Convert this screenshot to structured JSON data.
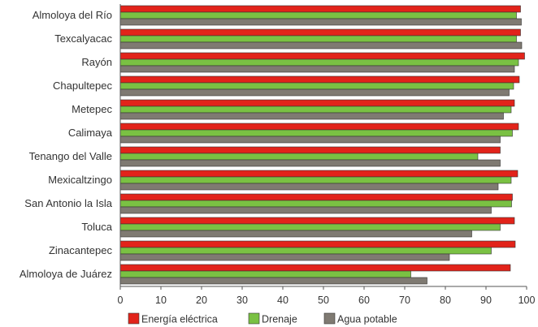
{
  "chart_data": {
    "type": "bar",
    "orientation": "horizontal",
    "categories": [
      "Almoloya del Río",
      "Texcalyacac",
      "Rayón",
      "Chapultepec",
      "Metepec",
      "Calimaya",
      "Tenango del Valle",
      "Mexicaltzingo",
      "San Antonio la Isla",
      "Toluca",
      "Zinacantepec",
      "Almoloya de Juárez"
    ],
    "series": [
      {
        "name": "Energía eléctrica",
        "color": "#e2231a",
        "values": [
          98.5,
          98.5,
          99.5,
          98.2,
          97,
          98,
          93.5,
          97.8,
          96.5,
          97,
          97.2,
          96
        ]
      },
      {
        "name": "Drenaje",
        "color": "#7ac143",
        "values": [
          97.5,
          97.5,
          98,
          96.8,
          96.2,
          96.5,
          88,
          96.2,
          96.3,
          93.5,
          91.3,
          71.5
        ]
      },
      {
        "name": "Agua potable",
        "color": "#7f7a72",
        "values": [
          98.7,
          98.8,
          97,
          95.7,
          94.3,
          93.5,
          93.5,
          93,
          91.3,
          86.5,
          81,
          75.5
        ]
      }
    ],
    "xlim": [
      0,
      100
    ],
    "xticks": [
      0,
      10,
      20,
      30,
      40,
      50,
      60,
      70,
      80,
      90,
      100
    ],
    "grid": false,
    "legend_position": "bottom"
  }
}
